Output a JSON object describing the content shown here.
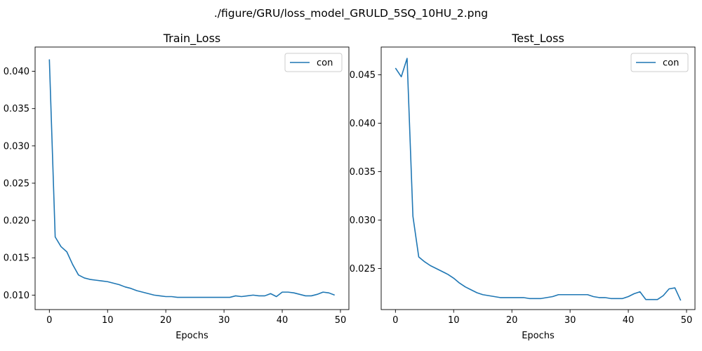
{
  "figure": {
    "suptitle": "./figure/GRU/loss_model_GRULD_5SQ_10HU_2.png"
  },
  "chart_data": [
    {
      "type": "line",
      "title": "Train_Loss",
      "xlabel": "Epochs",
      "ylabel": "",
      "xlim": [
        -2.45,
        51.45
      ],
      "ylim": [
        0.00806,
        0.04325
      ],
      "xticks": [
        0,
        10,
        20,
        30,
        40,
        50
      ],
      "yticks": [
        0.01,
        0.015,
        0.02,
        0.025,
        0.03,
        0.035,
        0.04
      ],
      "ytick_labels": [
        "0.010",
        "0.015",
        "0.020",
        "0.025",
        "0.030",
        "0.035",
        "0.040"
      ],
      "grid": false,
      "legend": "upper right",
      "series": [
        {
          "name": "con",
          "color": "#1f77b4",
          "x": [
            0,
            1,
            2,
            3,
            4,
            5,
            6,
            7,
            8,
            9,
            10,
            11,
            12,
            13,
            14,
            15,
            16,
            17,
            18,
            19,
            20,
            21,
            22,
            23,
            24,
            25,
            26,
            27,
            28,
            29,
            30,
            31,
            32,
            33,
            34,
            35,
            36,
            37,
            38,
            39,
            40,
            41,
            42,
            43,
            44,
            45,
            46,
            47,
            48,
            49
          ],
          "values": [
            0.0416,
            0.0178,
            0.0165,
            0.0158,
            0.0141,
            0.0127,
            0.0123,
            0.0121,
            0.012,
            0.0119,
            0.0118,
            0.0116,
            0.0114,
            0.0111,
            0.0109,
            0.0106,
            0.0104,
            0.0102,
            0.01,
            0.0099,
            0.0098,
            0.0098,
            0.0097,
            0.0097,
            0.0097,
            0.0097,
            0.0097,
            0.0097,
            0.0097,
            0.0097,
            0.0097,
            0.0097,
            0.0099,
            0.0098,
            0.0099,
            0.01,
            0.0099,
            0.0099,
            0.0102,
            0.0098,
            0.0104,
            0.0104,
            0.0103,
            0.0101,
            0.0099,
            0.0099,
            0.0101,
            0.0104,
            0.0103,
            0.01
          ]
        }
      ]
    },
    {
      "type": "line",
      "title": "Test_Loss",
      "xlabel": "Epochs",
      "ylabel": "",
      "xlim": [
        -2.45,
        51.45
      ],
      "ylim": [
        0.02076,
        0.04787
      ],
      "xticks": [
        0,
        10,
        20,
        30,
        40,
        50
      ],
      "yticks": [
        0.025,
        0.03,
        0.035,
        0.04,
        0.045
      ],
      "ytick_labels": [
        "0.025",
        "0.030",
        "0.035",
        "0.040",
        "0.045"
      ],
      "grid": false,
      "legend": "upper right",
      "series": [
        {
          "name": "con",
          "color": "#1f77b4",
          "x": [
            0,
            1,
            2,
            3,
            4,
            5,
            6,
            7,
            8,
            9,
            10,
            11,
            12,
            13,
            14,
            15,
            16,
            17,
            18,
            19,
            20,
            21,
            22,
            23,
            24,
            25,
            26,
            27,
            28,
            29,
            30,
            31,
            32,
            33,
            34,
            35,
            36,
            37,
            38,
            39,
            40,
            41,
            42,
            43,
            44,
            45,
            46,
            47,
            48,
            49
          ],
          "values": [
            0.0457,
            0.0448,
            0.0467,
            0.0304,
            0.0262,
            0.0257,
            0.0253,
            0.025,
            0.0247,
            0.0244,
            0.024,
            0.0235,
            0.0231,
            0.0228,
            0.0225,
            0.0223,
            0.0222,
            0.0221,
            0.022,
            0.022,
            0.022,
            0.022,
            0.022,
            0.0219,
            0.0219,
            0.0219,
            0.022,
            0.0221,
            0.0223,
            0.0223,
            0.0223,
            0.0223,
            0.0223,
            0.0223,
            0.0221,
            0.022,
            0.022,
            0.0219,
            0.0219,
            0.0219,
            0.0221,
            0.0224,
            0.0226,
            0.0218,
            0.0218,
            0.0218,
            0.0222,
            0.0229,
            0.023,
            0.0217
          ]
        }
      ]
    }
  ]
}
